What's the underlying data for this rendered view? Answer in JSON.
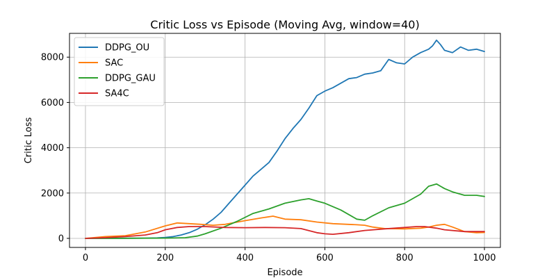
{
  "chart_data": {
    "type": "line",
    "title": "Critic Loss vs Episode (Moving Avg, window=40)",
    "xlabel": "Episode",
    "ylabel": "Critic Loss",
    "xlim": [
      -40,
      1040
    ],
    "ylim": [
      -400,
      9050
    ],
    "xticks": [
      0,
      200,
      400,
      600,
      800,
      1000
    ],
    "yticks": [
      0,
      2000,
      4000,
      6000,
      8000
    ],
    "grid": true,
    "legend_position": "top-left",
    "series": [
      {
        "name": "DDPG_OU",
        "color": "#1f77b4",
        "x": [
          0,
          50,
          100,
          150,
          180,
          200,
          220,
          240,
          260,
          280,
          300,
          320,
          340,
          360,
          380,
          400,
          420,
          440,
          460,
          480,
          500,
          520,
          540,
          560,
          580,
          600,
          620,
          640,
          660,
          680,
          700,
          720,
          740,
          760,
          780,
          800,
          820,
          840,
          860,
          870,
          880,
          890,
          900,
          920,
          940,
          960,
          980,
          1000
        ],
        "y": [
          0,
          0,
          5,
          10,
          20,
          40,
          80,
          150,
          250,
          400,
          600,
          850,
          1150,
          1550,
          1950,
          2350,
          2750,
          3050,
          3350,
          3850,
          4400,
          4850,
          5250,
          5750,
          6300,
          6500,
          6650,
          6850,
          7050,
          7100,
          7250,
          7300,
          7400,
          7900,
          7750,
          7700,
          8000,
          8200,
          8350,
          8500,
          8750,
          8550,
          8300,
          8200,
          8450,
          8300,
          8350,
          8250
        ]
      },
      {
        "name": "SAC",
        "color": "#ff7f0e",
        "x": [
          0,
          50,
          100,
          150,
          200,
          230,
          260,
          290,
          320,
          350,
          400,
          440,
          470,
          500,
          540,
          580,
          620,
          680,
          700,
          720,
          750,
          800,
          840,
          860,
          880,
          900,
          920,
          950,
          980,
          1000
        ],
        "y": [
          0,
          80,
          120,
          280,
          550,
          680,
          650,
          620,
          580,
          620,
          780,
          900,
          980,
          850,
          820,
          720,
          650,
          600,
          580,
          500,
          430,
          420,
          450,
          500,
          580,
          620,
          500,
          300,
          250,
          260
        ]
      },
      {
        "name": "DDPG_GAU",
        "color": "#2ca02c",
        "x": [
          0,
          100,
          200,
          250,
          280,
          300,
          340,
          380,
          420,
          460,
          500,
          540,
          560,
          580,
          600,
          640,
          680,
          700,
          720,
          760,
          800,
          840,
          860,
          880,
          900,
          920,
          950,
          980,
          1000
        ],
        "y": [
          0,
          5,
          10,
          30,
          100,
          200,
          450,
          750,
          1100,
          1300,
          1550,
          1700,
          1750,
          1650,
          1550,
          1250,
          850,
          800,
          1000,
          1350,
          1550,
          1950,
          2300,
          2400,
          2200,
          2050,
          1900,
          1900,
          1850
        ]
      },
      {
        "name": "SA4C",
        "color": "#d62728",
        "x": [
          0,
          50,
          100,
          150,
          180,
          200,
          230,
          260,
          300,
          350,
          400,
          450,
          500,
          540,
          580,
          600,
          620,
          660,
          700,
          750,
          800,
          830,
          850,
          880,
          900,
          950,
          1000
        ],
        "y": [
          0,
          30,
          80,
          150,
          250,
          380,
          480,
          520,
          520,
          480,
          470,
          480,
          470,
          430,
          250,
          200,
          180,
          250,
          350,
          420,
          480,
          520,
          520,
          450,
          380,
          300,
          300
        ]
      }
    ]
  }
}
